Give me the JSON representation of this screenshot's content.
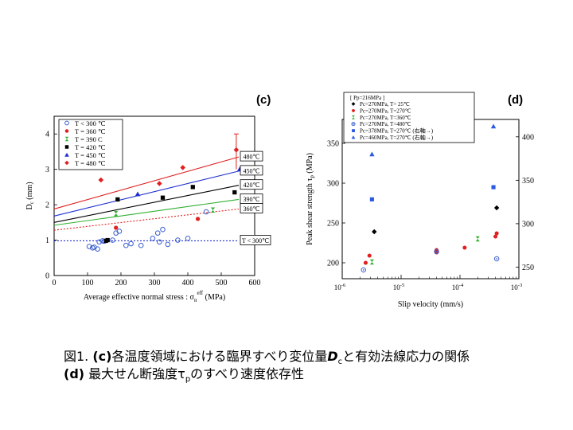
{
  "charts": [
    {
      "panel_label": "(c)",
      "type": "scatter",
      "xlabel_main": "Average effective normal stress : σ",
      "xlabel_sub": "n",
      "xlabel_sup": "eff",
      "xlabel_tail": " (MPa)",
      "ylabel_main": "D",
      "ylabel_sub": "c",
      "ylabel_tail": " (mm)",
      "xlim": [
        0,
        600
      ],
      "ylim": [
        0,
        4.5
      ],
      "xticks": [
        "0",
        "100",
        "200",
        "300",
        "400",
        "500",
        "600"
      ],
      "yticks": [
        "0",
        "1",
        "2",
        "3",
        "4"
      ],
      "legend": [
        "T < 300 ℃",
        "T = 360 ℃",
        "T = 390 C",
        "T = 420 ℃",
        "T = 450 ℃",
        "T = 480 ℃"
      ],
      "series": [
        {
          "marker": "circle-open",
          "color": "#3a5fcd",
          "points": [
            [
              105,
              0.82
            ],
            [
              115,
              0.78
            ],
            [
              120,
              0.8
            ],
            [
              130,
              0.75
            ],
            [
              135,
              0.95
            ],
            [
              145,
              0.98
            ],
            [
              150,
              0.97
            ],
            [
              175,
              1.0
            ],
            [
              185,
              1.2
            ],
            [
              195,
              1.25
            ],
            [
              215,
              0.85
            ],
            [
              230,
              0.9
            ],
            [
              260,
              0.85
            ],
            [
              295,
              1.05
            ],
            [
              310,
              1.2
            ],
            [
              315,
              0.95
            ],
            [
              325,
              1.3
            ],
            [
              340,
              0.88
            ],
            [
              370,
              1.0
            ],
            [
              400,
              1.05
            ],
            [
              455,
              1.8
            ]
          ]
        },
        {
          "marker": "circle",
          "color": "#e02020",
          "points": [
            [
              185,
              1.35
            ],
            [
              430,
              1.6
            ]
          ]
        },
        {
          "marker": "hourglass",
          "color": "#30b030",
          "points": [
            [
              185,
              1.75
            ],
            [
              475,
              1.85
            ]
          ]
        },
        {
          "marker": "square",
          "color": "#000000",
          "points": [
            [
              155,
              0.98
            ],
            [
              160,
              1.0
            ],
            [
              190,
              2.15
            ],
            [
              325,
              2.2
            ],
            [
              415,
              2.5
            ],
            [
              540,
              2.35
            ]
          ]
        },
        {
          "marker": "triangle",
          "color": "#2030d0",
          "points": [
            [
              250,
              2.3
            ],
            [
              555,
              3.0
            ]
          ]
        },
        {
          "marker": "diamond",
          "color": "#e02020",
          "points": [
            [
              140,
              2.7
            ],
            [
              315,
              2.6
            ],
            [
              385,
              3.05
            ],
            [
              545,
              3.55
            ]
          ]
        }
      ],
      "fit_lines": [
        {
          "label": "480℃",
          "color": "#e02020",
          "dashed": false,
          "y0": 1.88,
          "y1": 3.35
        },
        {
          "label": "450℃",
          "color": "#2030d0",
          "dashed": false,
          "y0": 1.68,
          "y1": 2.95
        },
        {
          "label": "420℃",
          "color": "#000000",
          "dashed": false,
          "y0": 1.5,
          "y1": 2.55
        },
        {
          "label": "390℃",
          "color": "#30b030",
          "dashed": false,
          "y0": 1.42,
          "y1": 2.15
        },
        {
          "label": "360℃",
          "color": "#e02020",
          "dashed": true,
          "y0": 1.28,
          "y1": 1.88
        },
        {
          "label": "T < 300℃",
          "color": "#2030d0",
          "dashed": true,
          "y0": 0.98,
          "y1": 0.98
        }
      ]
    },
    {
      "panel_label": "(d)",
      "type": "scatter",
      "xlabel": "Slip velocity (mm/s)",
      "ylabel_main": "Peak shear strength τ",
      "ylabel_sub": "p",
      "ylabel_tail": " (MPa)",
      "xscale": "log",
      "xlim": [
        1e-06,
        0.001
      ],
      "ylim": [
        180,
        380
      ],
      "y2lim": [
        236.67,
        420
      ],
      "xticks": [
        {
          "base": "10",
          "exp": "-6"
        },
        {
          "base": "10",
          "exp": "-5"
        },
        {
          "base": "10",
          "exp": "-4"
        },
        {
          "base": "10",
          "exp": "-3"
        }
      ],
      "yticks": [
        "200",
        "250",
        "300",
        "350"
      ],
      "y2ticks": [
        "250",
        "300",
        "350",
        "400"
      ],
      "legend_header": "[ Pp=216MPa ]",
      "legend": [
        "Pc=270MPa, T= 25℃",
        "Pc=270MPa, T=270℃",
        "Pc=270MPa, T=360℃",
        "Pc=270MPa, T=480℃",
        "Pc=378MPa, T=270℃ (右軸→)",
        "Pc=460MPa, T=270℃ (右軸→)"
      ],
      "series": [
        {
          "marker": "diamond",
          "color": "#000000",
          "axis": "left",
          "points": [
            [
              3.5e-06,
              239
            ],
            [
              0.00042,
              269
            ]
          ]
        },
        {
          "marker": "circle",
          "color": "#e02020",
          "axis": "left",
          "points": [
            [
              2.5e-06,
              200
            ],
            [
              2.9e-06,
              209
            ],
            [
              4e-05,
              213
            ],
            [
              4e-05,
              216
            ],
            [
              0.00012,
              219
            ],
            [
              0.0004,
              233
            ],
            [
              0.00042,
              237
            ]
          ]
        },
        {
          "marker": "hourglass",
          "color": "#30b030",
          "axis": "left",
          "points": [
            [
              3.2e-06,
              201
            ],
            [
              0.0002,
              230
            ]
          ]
        },
        {
          "marker": "circle-dot",
          "color": "#3a5fcd",
          "axis": "left",
          "points": [
            [
              2.3e-06,
              191
            ],
            [
              4e-05,
              214
            ],
            [
              0.00042,
              205
            ]
          ]
        },
        {
          "marker": "square",
          "color": "#2a5ae0",
          "axis": "right",
          "points": [
            [
              3.2e-06,
              328
            ],
            [
              0.00037,
              342
            ]
          ]
        },
        {
          "marker": "triangle",
          "color": "#2a5ae0",
          "axis": "right",
          "points": [
            [
              3.2e-06,
              380
            ],
            [
              0.00037,
              412
            ]
          ]
        }
      ]
    }
  ],
  "caption": {
    "line1_fig": "図1. ",
    "line1_c": "(c)",
    "line1_text1": "各温度領域における臨界すべり変位量",
    "line1_D": "D",
    "line1_Dsub": "c",
    "line1_text2": "と有効法線応力の関係",
    "line2_d": "(d)",
    "line2_text1": " 最大せん断強度τ",
    "line2_tsub": "p",
    "line2_text2": "のすべり速度依存性"
  }
}
